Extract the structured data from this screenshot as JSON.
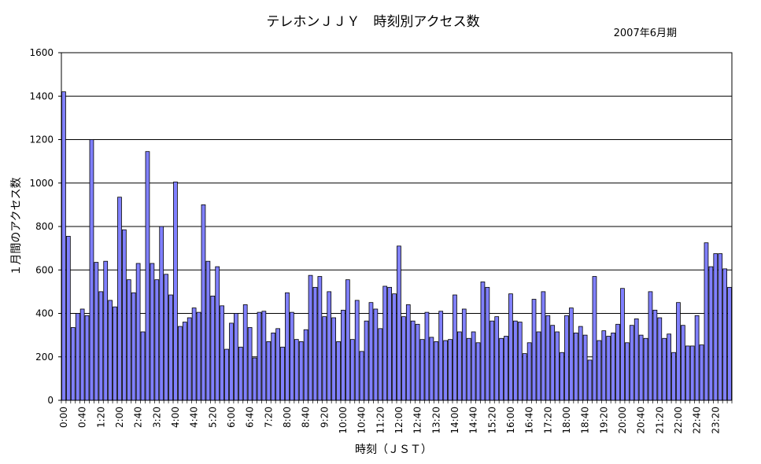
{
  "chart_data": {
    "type": "bar",
    "title": "テレホンＪＪＹ　時刻別アクセス数",
    "subtitle": "2007年6月期",
    "xlabel": "時刻（ＪＳＴ）",
    "ylabel": "１月間のアクセス数",
    "ylim": [
      0,
      1600
    ],
    "yticks": [
      0,
      200,
      400,
      600,
      800,
      1000,
      1200,
      1400,
      1600
    ],
    "grid": true,
    "bar_color": "#8080ff",
    "categories": [
      "0:00",
      "0:10",
      "0:20",
      "0:30",
      "0:40",
      "0:50",
      "1:00",
      "1:10",
      "1:20",
      "1:30",
      "1:40",
      "1:50",
      "2:00",
      "2:10",
      "2:20",
      "2:30",
      "2:40",
      "2:50",
      "3:00",
      "3:10",
      "3:20",
      "3:30",
      "3:40",
      "3:50",
      "4:00",
      "4:10",
      "4:20",
      "4:30",
      "4:40",
      "4:50",
      "5:00",
      "5:10",
      "5:20",
      "5:30",
      "5:40",
      "5:50",
      "6:00",
      "6:10",
      "6:20",
      "6:30",
      "6:40",
      "6:50",
      "7:00",
      "7:10",
      "7:20",
      "7:30",
      "7:40",
      "7:50",
      "8:00",
      "8:10",
      "8:20",
      "8:30",
      "8:40",
      "8:50",
      "9:00",
      "9:10",
      "9:20",
      "9:30",
      "9:40",
      "9:50",
      "10:00",
      "10:10",
      "10:20",
      "10:30",
      "10:40",
      "10:50",
      "11:00",
      "11:10",
      "11:20",
      "11:30",
      "11:40",
      "11:50",
      "12:00",
      "12:10",
      "12:20",
      "12:30",
      "12:40",
      "12:50",
      "13:00",
      "13:10",
      "13:20",
      "13:30",
      "13:40",
      "13:50",
      "14:00",
      "14:10",
      "14:20",
      "14:30",
      "14:40",
      "14:50",
      "15:00",
      "15:10",
      "15:20",
      "15:30",
      "15:40",
      "15:50",
      "16:00",
      "16:10",
      "16:20",
      "16:30",
      "16:40",
      "16:50",
      "17:00",
      "17:10",
      "17:20",
      "17:30",
      "17:40",
      "17:50",
      "18:00",
      "18:10",
      "18:20",
      "18:30",
      "18:40",
      "18:50",
      "19:00",
      "19:10",
      "19:20",
      "19:30",
      "19:40",
      "19:50",
      "20:00",
      "20:10",
      "20:20",
      "20:30",
      "20:40",
      "20:50",
      "21:00",
      "21:10",
      "21:20",
      "21:30",
      "21:40",
      "21:50",
      "22:00",
      "22:10",
      "22:20",
      "22:30",
      "22:40",
      "22:50",
      "23:00",
      "23:10",
      "23:20",
      "23:30",
      "23:40",
      "23:50"
    ],
    "x_tick_labels": [
      "0:00",
      "0:40",
      "1:20",
      "2:00",
      "2:40",
      "3:20",
      "4:00",
      "4:40",
      "5:20",
      "6:00",
      "6:40",
      "7:20",
      "8:00",
      "8:40",
      "9:20",
      "10:00",
      "10:40",
      "11:20",
      "12:00",
      "12:40",
      "13:20",
      "14:00",
      "14:40",
      "15:20",
      "16:00",
      "16:40",
      "17:20",
      "18:00",
      "18:40",
      "19:20",
      "20:00",
      "20:40",
      "21:20",
      "22:00",
      "22:40",
      "23:20"
    ],
    "values": [
      1420,
      755,
      335,
      400,
      420,
      390,
      1200,
      635,
      500,
      640,
      460,
      430,
      935,
      785,
      555,
      495,
      630,
      315,
      1145,
      630,
      555,
      800,
      580,
      485,
      1005,
      340,
      360,
      380,
      425,
      405,
      900,
      640,
      480,
      615,
      435,
      235,
      355,
      400,
      245,
      440,
      335,
      195,
      405,
      410,
      270,
      310,
      330,
      245,
      495,
      405,
      280,
      270,
      325,
      575,
      520,
      570,
      385,
      500,
      380,
      270,
      415,
      555,
      280,
      460,
      225,
      365,
      450,
      420,
      330,
      525,
      520,
      490,
      710,
      385,
      440,
      365,
      350,
      280,
      405,
      290,
      270,
      410,
      275,
      280,
      485,
      315,
      420,
      285,
      315,
      265,
      545,
      520,
      365,
      385,
      285,
      295,
      490,
      365,
      360,
      215,
      265,
      465,
      315,
      500,
      390,
      345,
      315,
      220,
      390,
      425,
      310,
      340,
      300,
      185,
      570,
      275,
      320,
      295,
      310,
      350,
      515,
      265,
      345,
      375,
      300,
      285,
      500,
      415,
      380,
      285,
      305,
      220,
      450,
      345,
      250,
      250,
      390,
      255,
      725,
      615,
      675,
      675,
      605,
      520
    ]
  }
}
